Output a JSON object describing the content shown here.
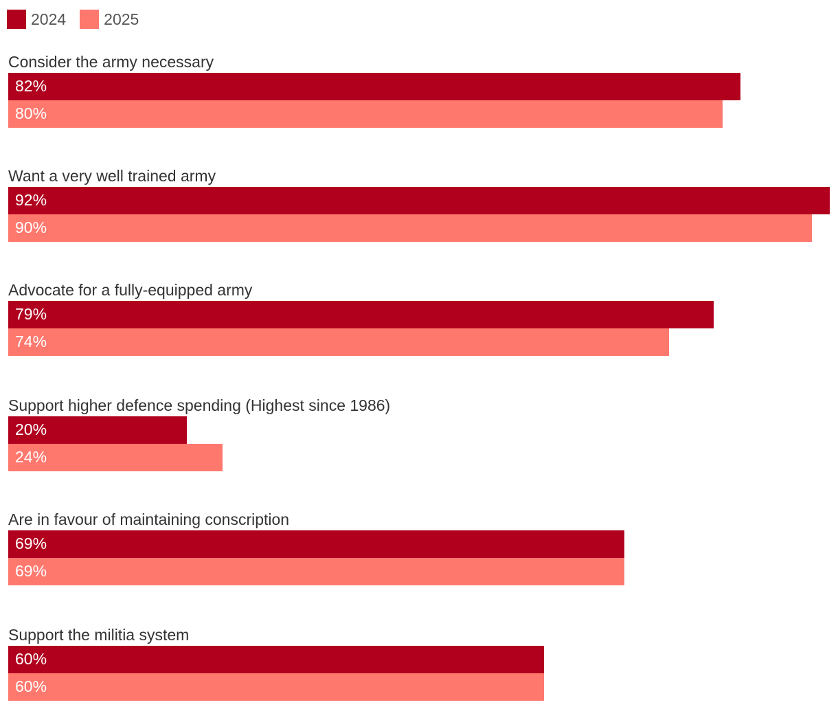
{
  "chart_data": {
    "type": "bar",
    "orientation": "horizontal",
    "categories": [
      "Consider the army necessary",
      "Want a very well trained army",
      "Advocate for a fully-equipped army",
      "Support higher defence spending (Highest since 1986)",
      "Are in favour of maintaining conscription",
      "Support the militia system"
    ],
    "series": [
      {
        "name": "2024",
        "color": "#B0001E",
        "values": [
          82,
          92,
          79,
          20,
          69,
          60
        ],
        "labels": [
          "82%",
          "92%",
          "79%",
          "20%",
          "69%",
          "60%"
        ]
      },
      {
        "name": "2025",
        "color": "#FF786E",
        "values": [
          80,
          90,
          74,
          24,
          69,
          60
        ],
        "labels": [
          "80%",
          "90%",
          "74%",
          "24%",
          "69%",
          "60%"
        ]
      }
    ],
    "xlim": [
      0,
      92
    ],
    "grid": false,
    "legend": "top-left",
    "title": "",
    "xlabel": "",
    "ylabel": ""
  }
}
